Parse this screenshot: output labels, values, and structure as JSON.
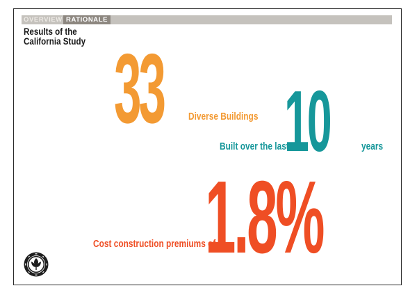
{
  "header": {
    "tab_overview": "OVERVIEW",
    "tab_rationale": "RATIONALE"
  },
  "title": {
    "line1": "Results of the",
    "line2": "California Study"
  },
  "stats": {
    "buildings_number": "33",
    "buildings_label": "Diverse Buildings",
    "years_prefix": "Built over the last",
    "years_number": "10",
    "years_suffix": "years",
    "premium_prefix": "Cost construction premiums of",
    "premium_number": "1.8%"
  },
  "logo": {
    "icon": "usgbc-seal-icon"
  },
  "colors": {
    "orange": "#f39a33",
    "teal": "#16979a",
    "red": "#ef4e24",
    "tab_bar": "#c5c2bd",
    "tab_active": "#8d8780"
  }
}
